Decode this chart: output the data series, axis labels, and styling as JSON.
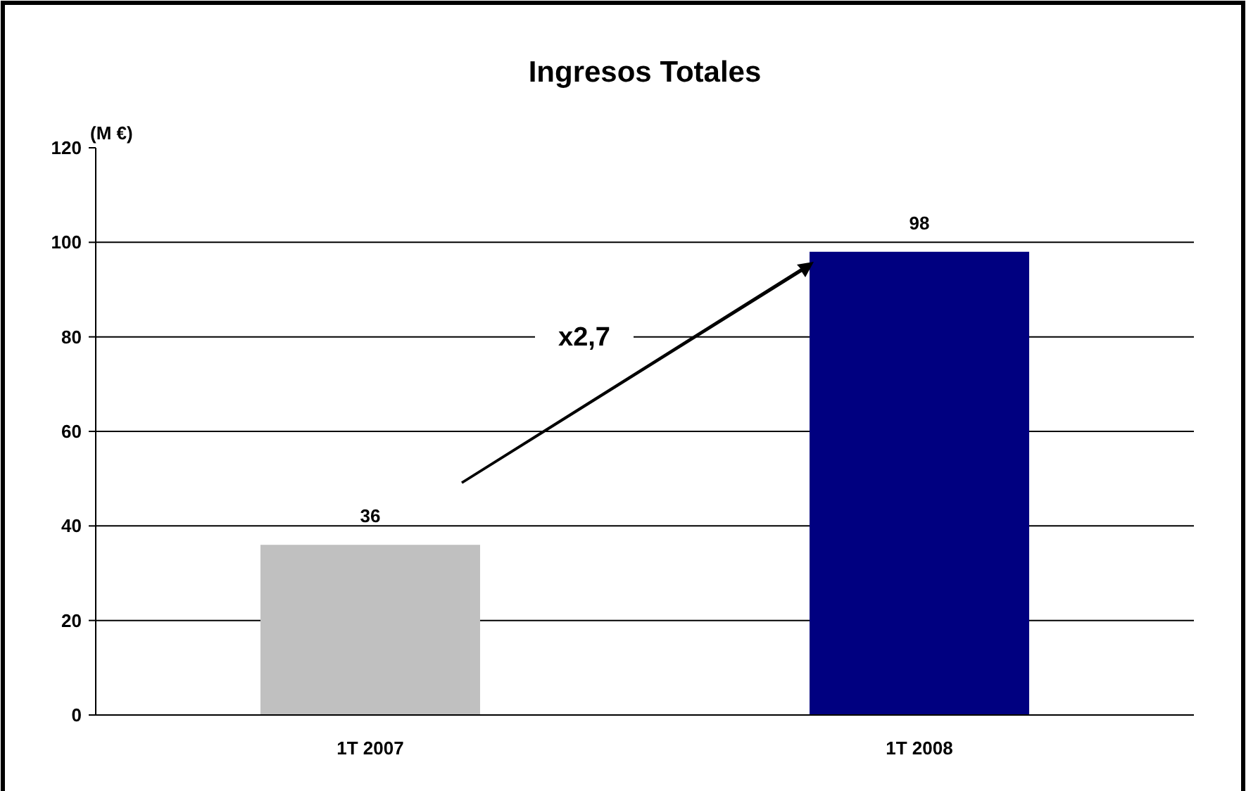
{
  "chart_data": {
    "type": "bar",
    "title": "Ingresos Totales",
    "ylabel": "(M €)",
    "categories": [
      "1T 2007",
      "1T 2008"
    ],
    "values": [
      36,
      98
    ],
    "colors": [
      "#c0c0c0",
      "#000080"
    ],
    "ylim": [
      0,
      120
    ],
    "yticks": [
      0,
      20,
      40,
      60,
      80,
      100,
      120
    ],
    "grid": "y",
    "data_labels": true,
    "annotations": [
      "x2,7"
    ]
  }
}
